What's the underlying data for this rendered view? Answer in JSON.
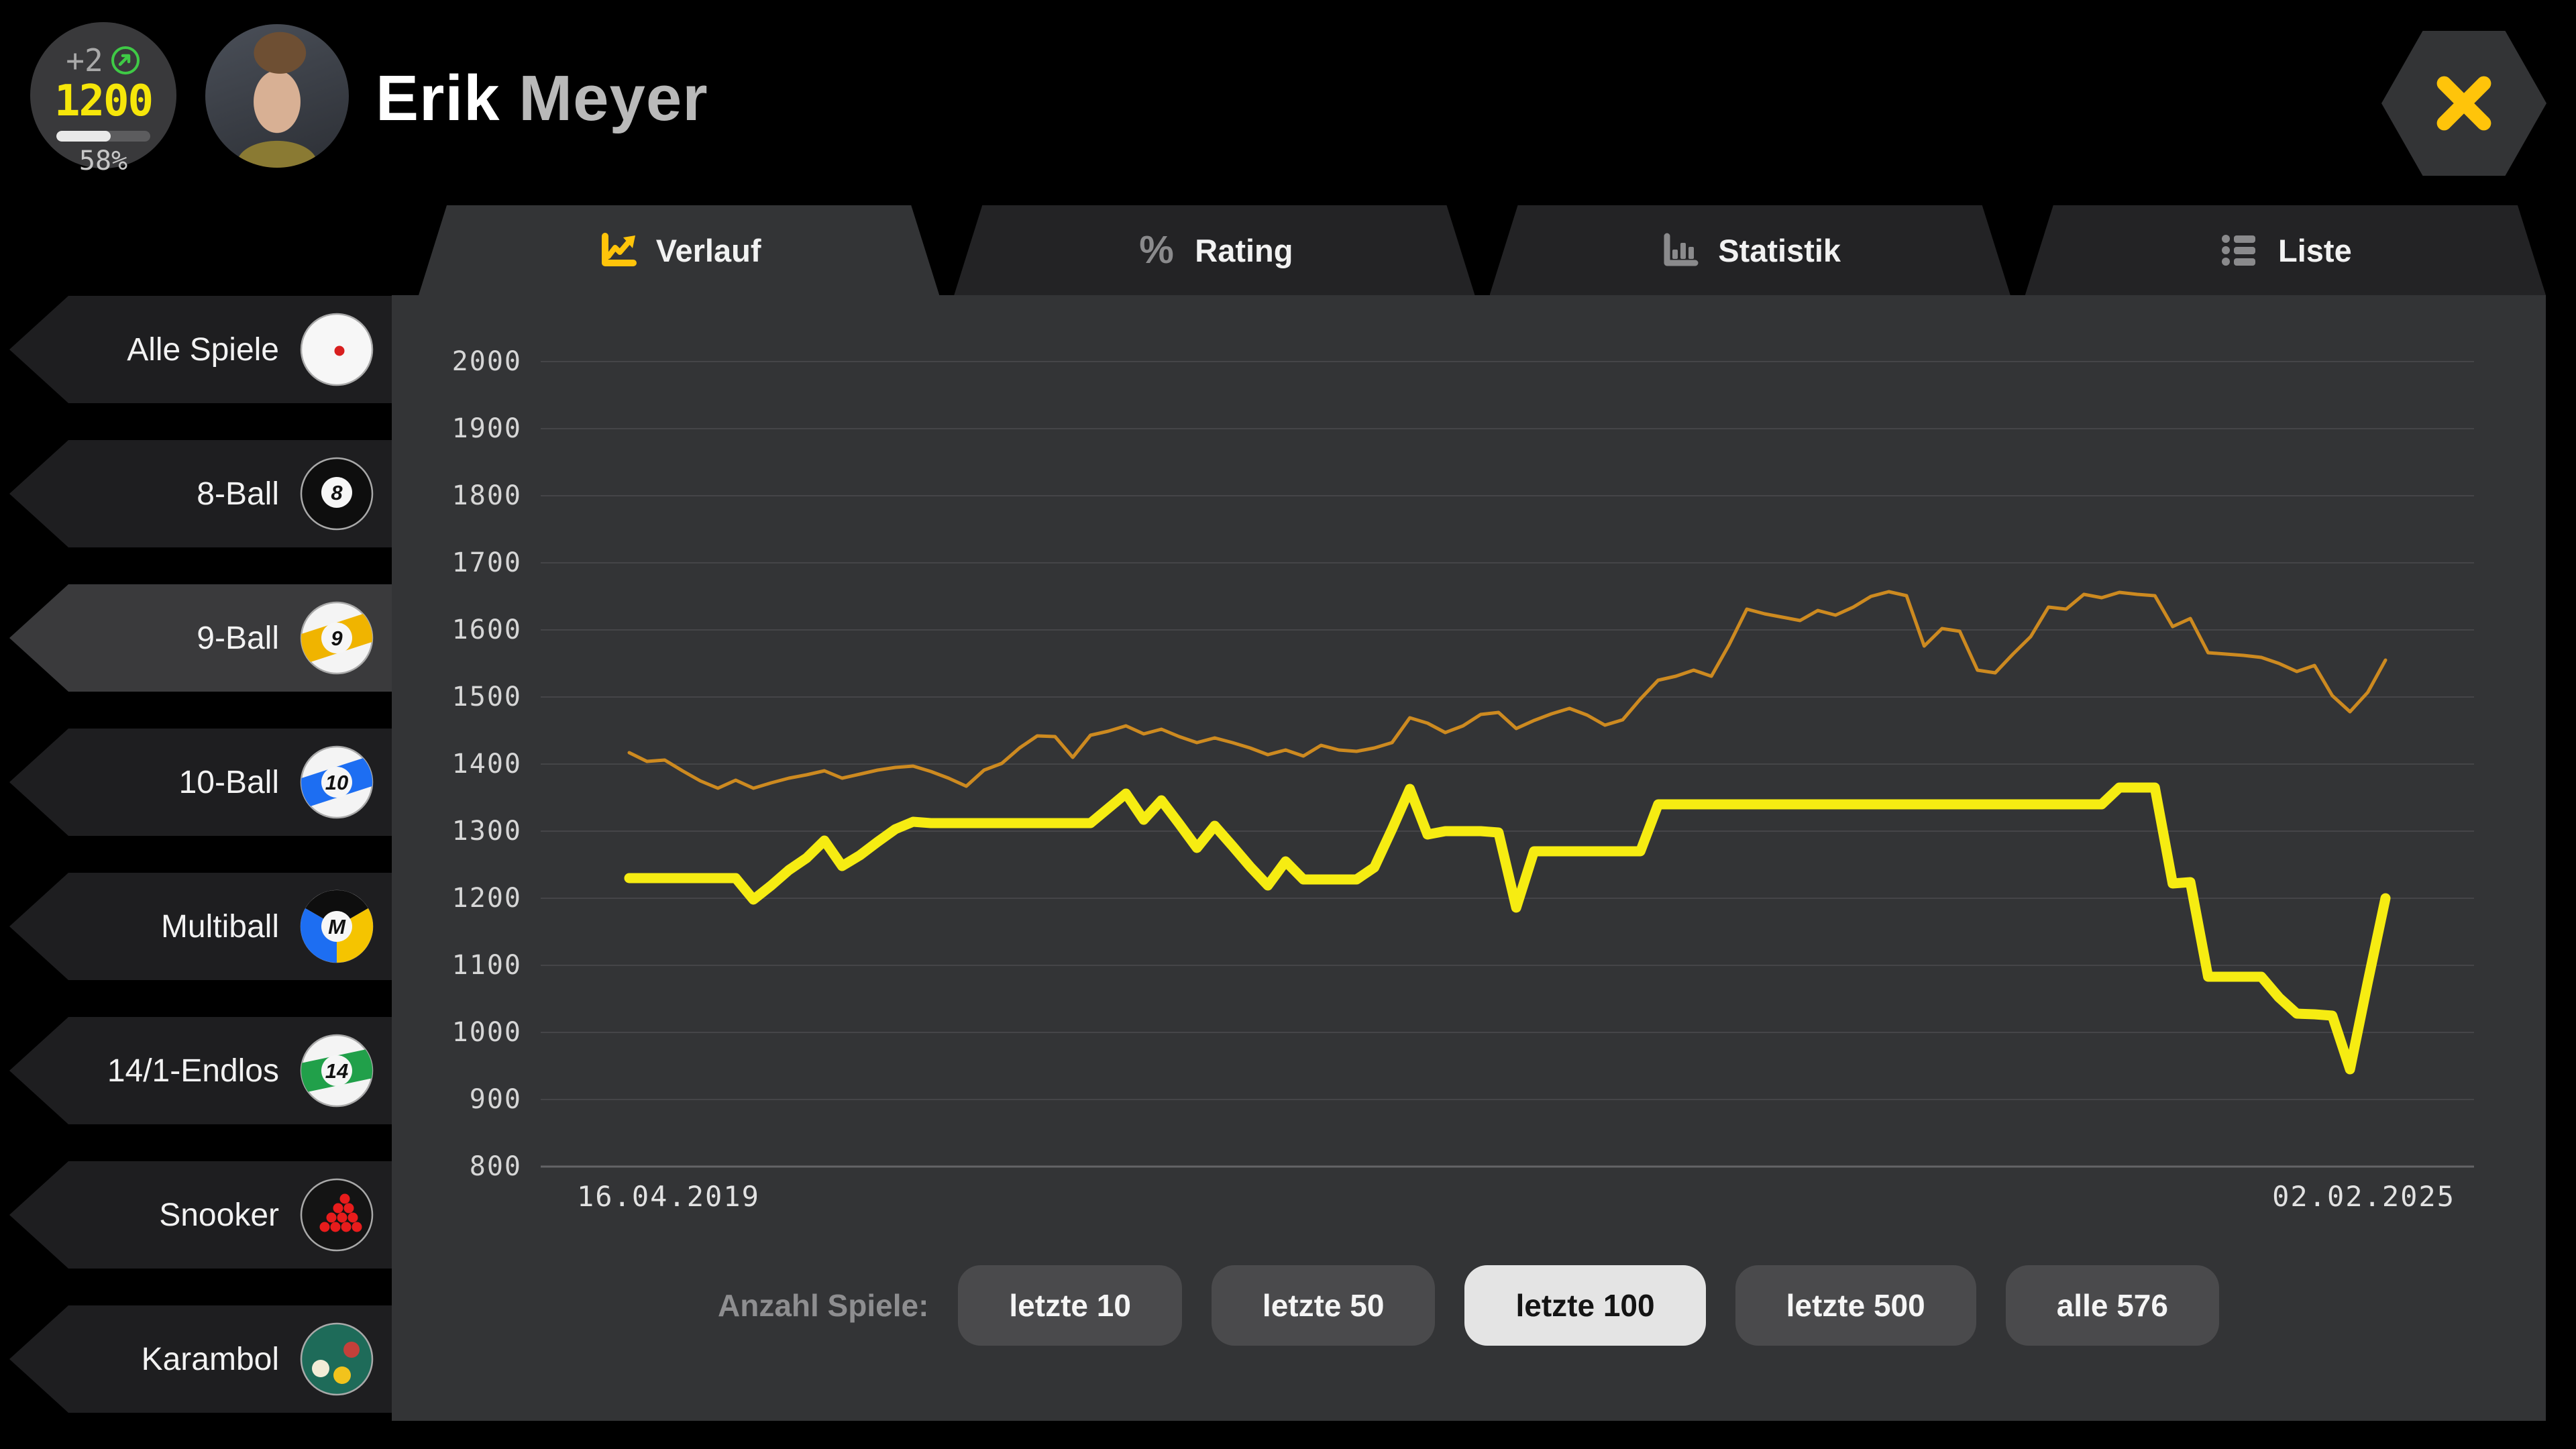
{
  "badge": {
    "delta": "+2",
    "value": "1200",
    "percent": "58%",
    "progress": 58,
    "trend_icon": "arrow-up-right-circle",
    "trend_color": "#3fca46"
  },
  "player": {
    "first": "Erik",
    "last": "Meyer"
  },
  "close": {
    "icon": "close-x"
  },
  "tabs": [
    {
      "label": "Verlauf",
      "icon": "line-chart-icon",
      "active": true
    },
    {
      "label": "Rating",
      "icon": "percent-icon",
      "active": false
    },
    {
      "label": "Statistik",
      "icon": "bar-chart-icon",
      "active": false
    },
    {
      "label": "Liste",
      "icon": "list-icon",
      "active": false
    }
  ],
  "sidebar": {
    "items": [
      {
        "label": "Alle Spiele",
        "icon": "cue-ball-icon",
        "active": false
      },
      {
        "label": "8-Ball",
        "icon": "eight-ball-icon",
        "active": false
      },
      {
        "label": "9-Ball",
        "icon": "nine-ball-icon",
        "active": true
      },
      {
        "label": "10-Ball",
        "icon": "ten-ball-icon",
        "active": false
      },
      {
        "label": "Multiball",
        "icon": "multiball-icon",
        "active": false
      },
      {
        "label": "14/1-Endlos",
        "icon": "fourteen-one-ball-icon",
        "active": false
      },
      {
        "label": "Snooker",
        "icon": "snooker-icon",
        "active": false
      },
      {
        "label": "Karambol",
        "icon": "karambol-icon",
        "active": false
      }
    ]
  },
  "chart_data": {
    "type": "line",
    "title": "",
    "xlabel": "",
    "ylabel": "",
    "x_axis": {
      "start_label": "16.04.2019",
      "end_label": "02.02.2025",
      "points": 100
    },
    "y_axis": {
      "min": 800,
      "max": 2000,
      "tick_step": 100,
      "ticks": [
        2000,
        1900,
        1800,
        1700,
        1600,
        1500,
        1400,
        1300,
        1200,
        1100,
        1000,
        900,
        800
      ]
    },
    "grid": "horizontal",
    "legend": "none",
    "series": [
      {
        "id": "orange-line",
        "color": "#cd8a20",
        "stroke_width": 5,
        "values": [
          1417,
          1404,
          1406,
          1390,
          1375,
          1364,
          1376,
          1364,
          1372,
          1379,
          1384,
          1390,
          1379,
          1385,
          1391,
          1395,
          1397,
          1389,
          1379,
          1367,
          1391,
          1401,
          1424,
          1442,
          1441,
          1410,
          1443,
          1449,
          1457,
          1445,
          1452,
          1441,
          1432,
          1439,
          1432,
          1424,
          1414,
          1421,
          1412,
          1428,
          1421,
          1419,
          1424,
          1432,
          1469,
          1461,
          1447,
          1457,
          1474,
          1477,
          1453,
          1465,
          1475,
          1483,
          1473,
          1458,
          1466,
          1497,
          1525,
          1531,
          1540,
          1531,
          1578,
          1631,
          1624,
          1619,
          1614,
          1629,
          1622,
          1634,
          1650,
          1657,
          1651,
          1576,
          1602,
          1598,
          1540,
          1536,
          1564,
          1590,
          1634,
          1631,
          1653,
          1648,
          1656,
          1653,
          1651,
          1605,
          1617,
          1566,
          1564,
          1562,
          1559,
          1550,
          1538,
          1547,
          1502,
          1478,
          1507,
          1555
        ]
      },
      {
        "id": "yellow-line",
        "color": "#f6ec12",
        "stroke_width": 15,
        "values": [
          1230,
          1230,
          1230,
          1230,
          1230,
          1230,
          1230,
          1198,
          1219,
          1242,
          1260,
          1286,
          1248,
          1264,
          1284,
          1303,
          1314,
          1312,
          1312,
          1312,
          1312,
          1312,
          1312,
          1312,
          1312,
          1312,
          1312,
          1334,
          1356,
          1317,
          1346,
          1311,
          1275,
          1308,
          1278,
          1247,
          1219,
          1255,
          1228,
          1228,
          1228,
          1228,
          1246,
          1303,
          1363,
          1295,
          1300,
          1300,
          1300,
          1298,
          1186,
          1270,
          1270,
          1270,
          1270,
          1270,
          1270,
          1270,
          1340,
          1340,
          1340,
          1340,
          1340,
          1340,
          1340,
          1340,
          1340,
          1340,
          1340,
          1340,
          1340,
          1340,
          1340,
          1340,
          1340,
          1340,
          1340,
          1340,
          1340,
          1340,
          1340,
          1340,
          1340,
          1340,
          1365,
          1365,
          1365,
          1222,
          1224,
          1083,
          1083,
          1083,
          1083,
          1052,
          1028,
          1027,
          1025,
          945,
          1075,
          1200
        ]
      }
    ]
  },
  "footer": {
    "label": "Anzahl Spiele:",
    "buttons": [
      {
        "label": "letzte 10",
        "active": false
      },
      {
        "label": "letzte 50",
        "active": false
      },
      {
        "label": "letzte 100",
        "active": true
      },
      {
        "label": "letzte 500",
        "active": false
      },
      {
        "label": "alle 576",
        "active": false
      }
    ]
  },
  "colors": {
    "background": "#000000",
    "panel": "#333436",
    "tab_inactive": "#232325",
    "sidebar_item": "#1e1e20",
    "sidebar_item_active": "#3a3a3c",
    "accent_gold": "#ffc40a",
    "chart_yellow": "#f6ec12",
    "chart_orange": "#cd8a20",
    "rating_yellow": "#f6e60a",
    "trend_green": "#3fca46",
    "button_gray": "#4a4a4c",
    "button_active": "#e4e4e4"
  }
}
